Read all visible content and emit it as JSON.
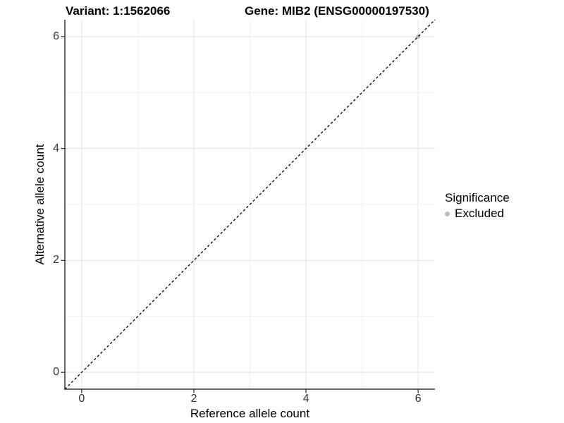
{
  "title": {
    "variant_part": "Variant: 1:1562066",
    "gene_part": "Gene: MIB2 (ENSG00000197530)"
  },
  "axes": {
    "x_label": "Reference allele count",
    "y_label": "Alternative allele count"
  },
  "legend": {
    "title": "Significance",
    "items": [
      {
        "label": "Excluded",
        "color": "#bdbdbd"
      }
    ]
  },
  "colors": {
    "background": "#ffffff",
    "grid_major": "#e3e3e3",
    "grid_minor": "#f1f1f1",
    "axis_line": "#333333",
    "tick_mark": "#333333",
    "tick_label": "#333333",
    "reference_line": "#000000",
    "point": "#bdbdbd"
  },
  "chart_data": {
    "type": "scatter",
    "title": "Variant: 1:1562066    Gene: MIB2 (ENSG00000197530)",
    "xlabel": "Reference allele count",
    "ylabel": "Alternative allele count",
    "xlim": [
      -0.3,
      6.3
    ],
    "ylim": [
      -0.3,
      6.3
    ],
    "x_ticks": [
      0,
      2,
      4,
      6
    ],
    "y_ticks": [
      0,
      2,
      4,
      6
    ],
    "x_minor_ticks": [
      1,
      3,
      5
    ],
    "y_minor_ticks": [
      1,
      3,
      5
    ],
    "grid": true,
    "legend_position": "right",
    "series": [
      {
        "name": "Excluded",
        "color": "#bdbdbd",
        "points": [
          {
            "x": 6,
            "y": 6
          }
        ]
      }
    ],
    "reference_line": {
      "slope": 1,
      "intercept": 0,
      "style": "dashed",
      "color": "#000000"
    }
  }
}
